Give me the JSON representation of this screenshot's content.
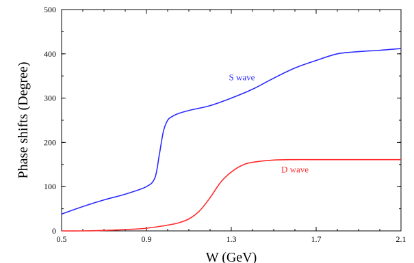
{
  "chart_data": {
    "type": "line",
    "title": "",
    "xlabel": "W (GeV)",
    "ylabel": "Phase shifts (Degree)",
    "xlim": [
      0.5,
      2.1
    ],
    "ylim": [
      0,
      500
    ],
    "xticks": [
      "0.5",
      "0.9",
      "1.3",
      "1.7",
      "2.1"
    ],
    "yticks": [
      "0",
      "100",
      "200",
      "300",
      "400",
      "500"
    ],
    "grid": false,
    "series": [
      {
        "name": "S wave",
        "color": "#2a2aff",
        "x": [
          0.5,
          0.6,
          0.7,
          0.8,
          0.9,
          0.94,
          0.96,
          0.98,
          1.0,
          1.02,
          1.05,
          1.1,
          1.2,
          1.3,
          1.4,
          1.5,
          1.6,
          1.7,
          1.8,
          1.9,
          2.0,
          2.1
        ],
        "y": [
          38,
          55,
          70,
          83,
          100,
          120,
          170,
          225,
          250,
          258,
          265,
          272,
          283,
          300,
          320,
          345,
          368,
          385,
          400,
          405,
          408,
          412
        ]
      },
      {
        "name": "D wave",
        "color": "#ff2a2a",
        "x": [
          0.5,
          0.6,
          0.7,
          0.8,
          0.9,
          1.0,
          1.05,
          1.1,
          1.15,
          1.2,
          1.25,
          1.3,
          1.35,
          1.4,
          1.5,
          1.6,
          1.7,
          1.8,
          1.9,
          2.0,
          2.1
        ],
        "y": [
          0,
          0,
          1,
          3,
          6,
          13,
          18,
          27,
          45,
          75,
          110,
          133,
          148,
          155,
          160,
          161,
          161,
          161,
          161,
          161,
          161
        ]
      }
    ],
    "annotations": [
      {
        "text": "S wave",
        "x": 1.35,
        "y": 340,
        "color": "#2a2aff"
      },
      {
        "text": "D wave",
        "x": 1.6,
        "y": 132,
        "color": "#ff2a2a"
      }
    ]
  }
}
